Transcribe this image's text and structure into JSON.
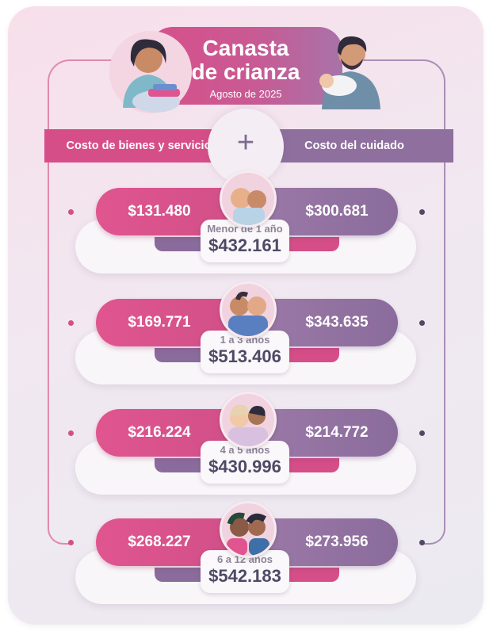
{
  "header": {
    "title_line1": "Canasta",
    "title_line2": "de crianza",
    "subtitle": "Agosto de 2025"
  },
  "columns": {
    "left_label": "Costo de bienes y servicios",
    "right_label": "Costo del cuidado",
    "plus_symbol": "+"
  },
  "rows": [
    {
      "age": "Menor de 1 año",
      "goods": "$131.480",
      "care": "$300.681",
      "total": "$432.161"
    },
    {
      "age": "1 a 3 años",
      "goods": "$169.771",
      "care": "$343.635",
      "total": "$513.406"
    },
    {
      "age": "4 a 5 años",
      "goods": "$216.224",
      "care": "$214.772",
      "total": "$430.996"
    },
    {
      "age": "6 a 12 años",
      "goods": "$268.227",
      "care": "$273.956",
      "total": "$542.183"
    }
  ],
  "colors": {
    "pink": "#d64e88",
    "purple": "#8e6f9e",
    "total_text": "#4e4a66"
  },
  "icons": {
    "mother": "mother-with-laundry-icon",
    "father": "father-holding-baby-icon",
    "row_photos": [
      "babies-icon",
      "toddlers-icon",
      "preschoolers-icon",
      "school-children-icon"
    ]
  }
}
